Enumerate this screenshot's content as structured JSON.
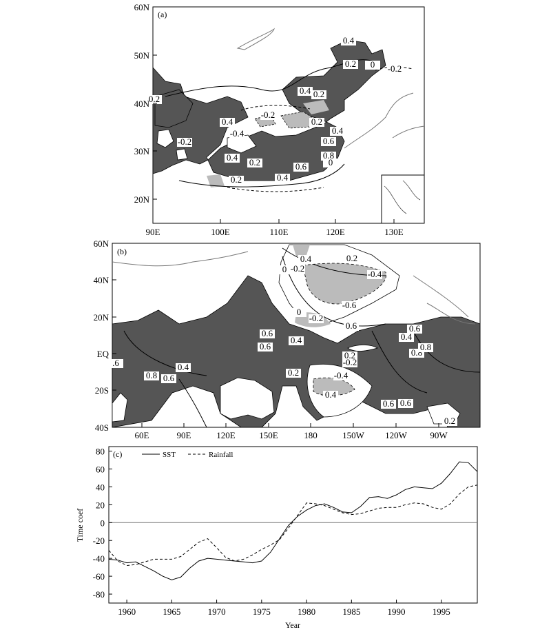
{
  "chart_data": [
    {
      "type": "heatmap",
      "panel_label": "(a)",
      "x_ticks": [
        "90E",
        "100E",
        "110E",
        "120E",
        "130E"
      ],
      "y_ticks": [
        "60N",
        "50N",
        "40N",
        "30N",
        "20N"
      ],
      "contour_labels": [
        "0.4",
        "0.2",
        "0",
        "-0.2",
        "0.4",
        "0.2",
        "0.2",
        "-0.2",
        "0.4",
        "0.2",
        "-0.4",
        "0.4",
        "-0.2",
        "0.6",
        "0.8",
        "0.4",
        "0.2",
        "0.6",
        "0.4",
        "0.2",
        "0"
      ],
      "inset": true
    },
    {
      "type": "heatmap",
      "panel_label": "(b)",
      "x_ticks": [
        "60E",
        "90E",
        "120E",
        "150E",
        "180",
        "150W",
        "120W",
        "90W"
      ],
      "y_ticks": [
        "60N",
        "40N",
        "20N",
        "EQ",
        "20S",
        "40S"
      ],
      "contour_labels": [
        "0.4",
        "0.2",
        "0",
        "-0.2",
        "-0.4",
        "-0.6",
        "0",
        "-0.2",
        "0.4",
        "0.6",
        "0.4",
        "0.6",
        "0.6",
        "0.8",
        "0.6",
        "0.8",
        "0.8",
        "0.6",
        "0.4",
        "0.2",
        "0.2",
        "-0.2",
        "-0.4",
        "0.4",
        "0.6",
        "0.6",
        "0.2",
        ".6"
      ]
    },
    {
      "type": "line",
      "panel_label": "(c)",
      "xlabel": "Year",
      "ylabel": "Time coef",
      "xlim": [
        1958,
        1999
      ],
      "ylim": [
        -90,
        85
      ],
      "x_ticks": [
        1960,
        1965,
        1970,
        1975,
        1980,
        1985,
        1990,
        1995
      ],
      "y_ticks": [
        80,
        60,
        40,
        20,
        0,
        -20,
        -40,
        -60,
        -80
      ],
      "legend_position": "top-left",
      "series": [
        {
          "name": "SST",
          "style": "solid",
          "x": [
            1958,
            1959,
            1960,
            1961,
            1962,
            1963,
            1964,
            1965,
            1966,
            1967,
            1968,
            1969,
            1970,
            1971,
            1972,
            1973,
            1974,
            1975,
            1976,
            1977,
            1978,
            1979,
            1980,
            1981,
            1982,
            1983,
            1984,
            1985,
            1986,
            1987,
            1988,
            1989,
            1990,
            1991,
            1992,
            1993,
            1994,
            1995,
            1996,
            1997,
            1998,
            1999
          ],
          "values": [
            -41,
            -42,
            -45,
            -44,
            -49,
            -54,
            -60,
            -64,
            -61,
            -51,
            -43,
            -40,
            -41,
            -42,
            -43,
            -44,
            -45,
            -43,
            -33,
            -18,
            -3,
            7,
            14,
            19,
            21,
            17,
            12,
            11,
            18,
            28,
            29,
            27,
            31,
            37,
            40,
            39,
            38,
            44,
            55,
            68,
            67,
            57
          ]
        },
        {
          "name": "Rainfall",
          "style": "dashed",
          "x": [
            1958,
            1959,
            1960,
            1961,
            1962,
            1963,
            1964,
            1965,
            1966,
            1967,
            1968,
            1969,
            1970,
            1971,
            1972,
            1973,
            1974,
            1975,
            1976,
            1977,
            1978,
            1979,
            1980,
            1981,
            1982,
            1983,
            1984,
            1985,
            1986,
            1987,
            1988,
            1989,
            1990,
            1991,
            1992,
            1993,
            1994,
            1995,
            1996,
            1997,
            1998,
            1999
          ],
          "values": [
            -31,
            -43,
            -48,
            -47,
            -44,
            -41,
            -41,
            -41,
            -38,
            -30,
            -22,
            -18,
            -28,
            -39,
            -43,
            -41,
            -36,
            -30,
            -25,
            -19,
            -6,
            8,
            22,
            21,
            19,
            15,
            11,
            9,
            10,
            13,
            16,
            17,
            17,
            20,
            22,
            21,
            17,
            15,
            21,
            32,
            40,
            42
          ]
        }
      ]
    }
  ]
}
